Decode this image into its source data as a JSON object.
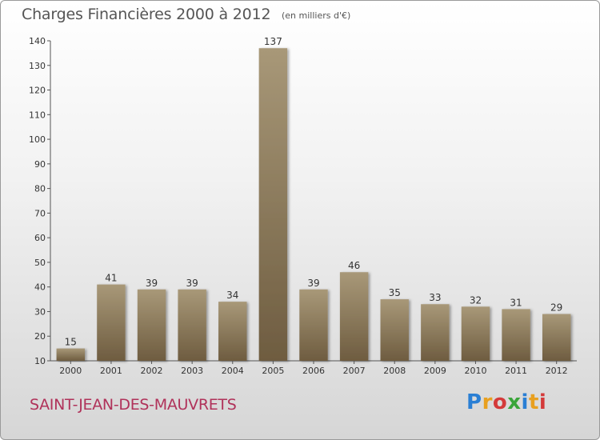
{
  "header": {
    "title": "Charges Financières 2000 à 2012",
    "unit": "(en milliers d'€)"
  },
  "footer": {
    "commune": "SAINT-JEAN-DES-MAUVRETS",
    "logo_letters": [
      "P",
      "r",
      "o",
      "x",
      "i",
      "t",
      "i"
    ],
    "logo_colors": [
      "#2a7fd4",
      "#e8a020",
      "#d43a3a",
      "#3aa53a",
      "#2a7fd4",
      "#e8a020",
      "#d43a3a"
    ]
  },
  "colors": {
    "bar_top": "#a89878",
    "bar_bottom": "#6e5c40"
  },
  "chart_data": {
    "type": "bar",
    "categories": [
      "2000",
      "2001",
      "2002",
      "2003",
      "2004",
      "2005",
      "2006",
      "2007",
      "2008",
      "2009",
      "2010",
      "2011",
      "2012"
    ],
    "values": [
      15,
      41,
      39,
      39,
      34,
      137,
      39,
      46,
      35,
      33,
      32,
      31,
      29
    ],
    "title": "Charges Financières 2000 à 2012",
    "ylim": [
      10,
      140
    ],
    "yticks": [
      10,
      20,
      30,
      40,
      50,
      60,
      70,
      80,
      90,
      100,
      110,
      120,
      130,
      140
    ],
    "grid": false,
    "legend": "none"
  }
}
